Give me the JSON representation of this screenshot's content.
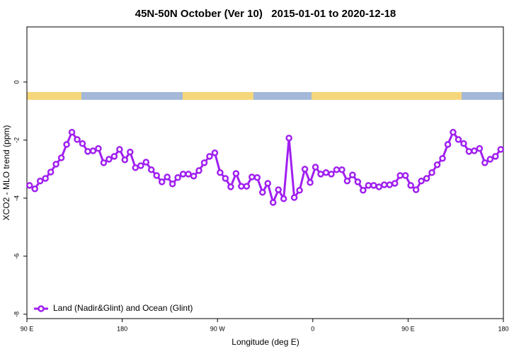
{
  "chart_data": {
    "type": "line",
    "title": "45N-50N October (Ver 10)   2015-01-01 to 2020-12-18",
    "xlabel": "Longitude (deg E)",
    "ylabel": "XCO2 - MLO trend (ppm)",
    "xlim": [
      90,
      540
    ],
    "ylim": [
      -8.15,
      1.9
    ],
    "xticks": [
      {
        "value": 90,
        "label": "90 E"
      },
      {
        "value": 180,
        "label": "180"
      },
      {
        "value": 270,
        "label": "90 W"
      },
      {
        "value": 360,
        "label": "0"
      },
      {
        "value": 450,
        "label": "90 E"
      },
      {
        "value": 540,
        "label": "180"
      }
    ],
    "yticks": [
      0,
      -2,
      -4,
      -6,
      -8
    ],
    "legend": "bottom-left",
    "x": [
      92.5,
      97.5,
      102.5,
      107.5,
      112.5,
      117.5,
      122.5,
      127.5,
      132.5,
      137.5,
      142.5,
      147.5,
      152.5,
      157.5,
      162.5,
      167.5,
      172.5,
      177.5,
      182.5,
      187.5,
      192.5,
      197.5,
      202.5,
      207.5,
      212.5,
      217.5,
      222.5,
      227.5,
      232.5,
      237.5,
      242.5,
      247.5,
      252.5,
      257.5,
      262.5,
      267.5,
      272.5,
      277.5,
      282.5,
      287.5,
      292.5,
      297.5,
      302.5,
      307.5,
      312.5,
      317.5,
      322.5,
      327.5,
      332.5,
      337.5,
      342.5,
      347.5,
      352.5,
      357.5,
      362.5,
      367.5,
      372.5,
      377.5,
      382.5,
      387.5,
      392.5,
      397.5,
      402.5,
      407.5,
      412.5,
      417.5,
      422.5,
      427.5,
      432.5,
      437.5,
      442.5,
      447.5,
      452.5,
      457.5,
      462.5,
      467.5,
      472.5,
      477.5,
      482.5,
      487.5,
      492.5,
      497.5,
      502.5,
      507.5,
      512.5,
      517.5,
      522.5,
      527.5,
      532.5,
      537.5
    ],
    "series": [
      {
        "name": "Land (Nadir&Glint) and Ocean (Glint)",
        "color": "#a020f0",
        "values": [
          -3.56,
          -3.68,
          -3.41,
          -3.32,
          -3.1,
          -2.83,
          -2.61,
          -2.15,
          -1.73,
          -1.98,
          -2.12,
          -2.39,
          -2.37,
          -2.29,
          -2.78,
          -2.66,
          -2.56,
          -2.32,
          -2.68,
          -2.41,
          -2.95,
          -2.88,
          -2.76,
          -3.02,
          -3.22,
          -3.44,
          -3.27,
          -3.51,
          -3.29,
          -3.17,
          -3.17,
          -3.24,
          -3.05,
          -2.78,
          -2.56,
          -2.44,
          -3.12,
          -3.32,
          -3.61,
          -3.15,
          -3.59,
          -3.59,
          -3.27,
          -3.29,
          -3.8,
          -3.49,
          -4.15,
          -3.71,
          -4.02,
          -1.93,
          -3.98,
          -3.73,
          -3.0,
          -3.46,
          -2.93,
          -3.17,
          -3.12,
          -3.17,
          -3.02,
          -3.02,
          -3.41,
          -3.2,
          -3.44,
          -3.73,
          -3.56,
          -3.56,
          -3.61,
          -3.54,
          -3.54,
          -3.49,
          -3.22,
          -3.22,
          -3.56,
          -3.71,
          -3.41,
          -3.32,
          -3.12,
          -2.85,
          -2.63,
          -2.15,
          -1.73,
          -1.98,
          -2.12,
          -2.39,
          -2.37,
          -2.29,
          -2.78,
          -2.66,
          -2.56,
          -2.32
        ]
      }
    ]
  }
}
